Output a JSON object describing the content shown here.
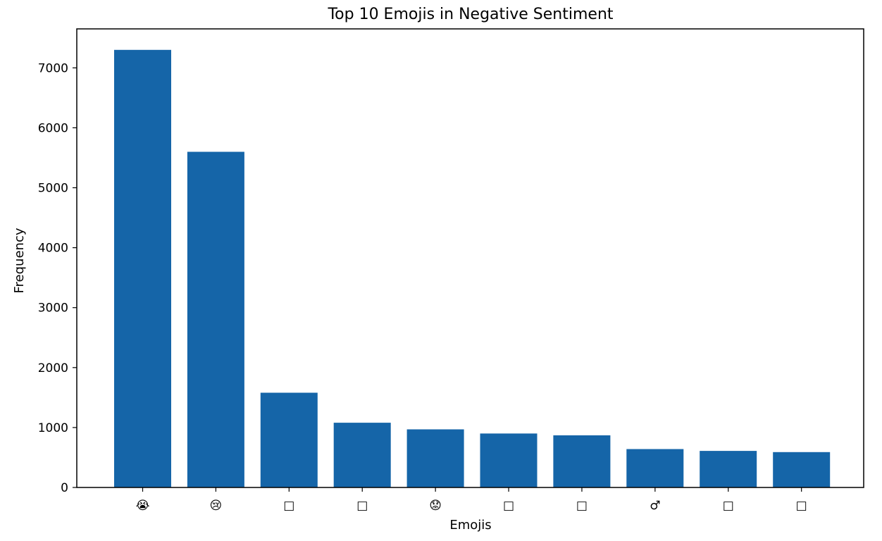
{
  "chart_data": {
    "type": "bar",
    "title": "Top 10 Emojis in Negative Sentiment",
    "xlabel": "Emojis",
    "ylabel": "Frequency",
    "categories": [
      "😭",
      "😢",
      "□",
      "□",
      "😟",
      "□",
      "□",
      "♂",
      "□",
      "□"
    ],
    "values": [
      7300,
      5600,
      1580,
      1080,
      970,
      900,
      870,
      640,
      610,
      590
    ],
    "ylim": [
      0,
      7650
    ],
    "yticks": [
      0,
      1000,
      2000,
      3000,
      4000,
      5000,
      6000,
      7000
    ],
    "grid": false,
    "bar_color": "#1565a8"
  }
}
